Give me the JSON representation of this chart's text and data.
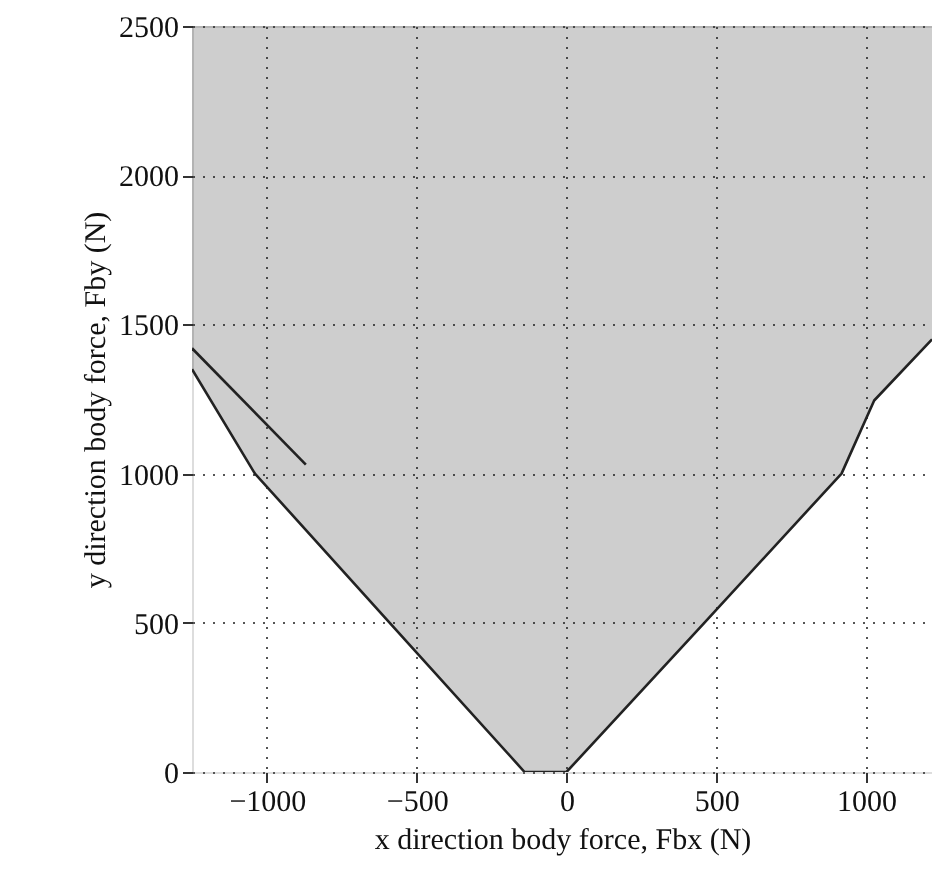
{
  "chart_data": {
    "type": "line",
    "xlabel": "x direction body force, Fbx (N)",
    "ylabel": "y direction body force, Fby (N)",
    "series": [
      {
        "color": "#222222",
        "x": [
          -1250,
          -1040,
          -590,
          -140,
          0,
          460,
          918,
          1027,
          1220
        ],
        "values": [
          1350,
          1000,
          500,
          0,
          0,
          500,
          1000,
          1245,
          1450
        ],
        "lower": [
          1350,
          1000,
          500,
          0,
          0,
          500,
          1000,
          1245,
          1450
        ],
        "upper": [
          2500,
          2500,
          2500,
          2500,
          2500,
          2500,
          2500,
          2500,
          2500
        ]
      },
      {
        "color": "#222222",
        "x": [
          -1250,
          -870
        ],
        "values": [
          1420,
          1030
        ]
      }
    ],
    "xlim": [
      -1250,
      1220
    ],
    "ylim": [
      0,
      2500
    ],
    "xticks": [
      -1000,
      -500,
      0,
      500,
      1000
    ],
    "yticks": [
      0,
      500,
      1000,
      1500,
      2000,
      2500
    ],
    "grid": true,
    "line_style": "solid",
    "marker": "none"
  }
}
